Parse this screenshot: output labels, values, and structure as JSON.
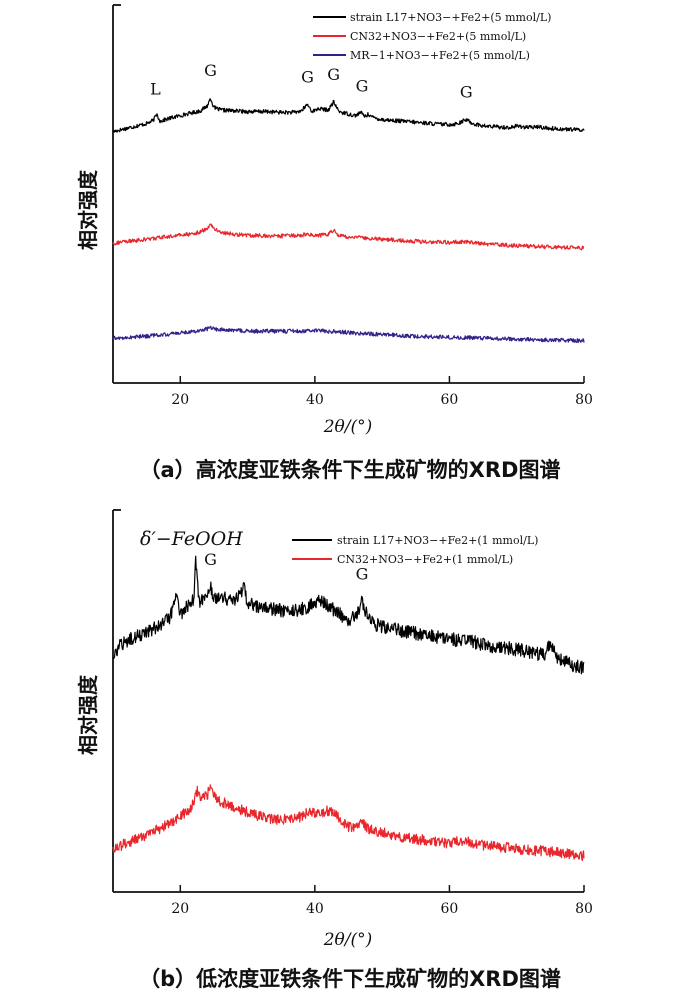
{
  "chart_data": [
    {
      "type": "line",
      "panel": "a",
      "caption": "（a）高浓度亚铁条件下生成矿物的XRD图谱",
      "title": "",
      "xlabel": "2θ/(°)",
      "ylabel": "相对强度",
      "xlim": [
        10,
        80
      ],
      "xticks": [
        20,
        40,
        60,
        80
      ],
      "yticks": [],
      "grid": false,
      "legend_position": "top-right",
      "series": [
        {
          "name": "strain L17+NO3−+Fe2+(5 mmol/L)",
          "color": "#000000",
          "x": [
            10,
            12,
            14,
            15,
            16,
            16.5,
            17,
            19,
            21,
            22,
            23,
            24,
            24.5,
            25,
            26,
            28,
            30,
            33,
            35,
            37,
            38,
            38.9,
            39.5,
            40,
            40.5,
            41,
            42,
            42.8,
            43.5,
            44,
            45,
            46,
            46.8,
            47.5,
            48,
            48.5,
            50,
            53,
            56,
            59,
            60.5,
            61.5,
            62.5,
            63.5,
            65,
            67,
            69,
            70,
            72,
            73,
            75,
            77,
            80
          ],
          "y": [
            0.58,
            0.62,
            0.66,
            0.68,
            0.72,
            0.8,
            0.71,
            0.76,
            0.8,
            0.82,
            0.84,
            0.9,
            1.0,
            0.88,
            0.85,
            0.84,
            0.83,
            0.83,
            0.82,
            0.82,
            0.84,
            0.92,
            0.84,
            0.84,
            0.87,
            0.86,
            0.85,
            0.95,
            0.84,
            0.82,
            0.8,
            0.78,
            0.82,
            0.77,
            0.8,
            0.76,
            0.73,
            0.71,
            0.69,
            0.67,
            0.67,
            0.69,
            0.73,
            0.68,
            0.65,
            0.64,
            0.63,
            0.65,
            0.63,
            0.64,
            0.62,
            0.61,
            0.6
          ]
        },
        {
          "name": "CN32+NO3−+Fe2+(5 mmol/L)",
          "color": "#e8262b",
          "x": [
            10,
            12,
            15,
            18,
            21,
            23,
            24,
            24.5,
            25,
            26,
            28,
            30,
            33,
            36,
            38,
            39,
            40,
            41,
            42,
            42.8,
            43.5,
            45,
            48,
            52,
            56,
            60,
            62,
            64,
            67,
            70,
            73,
            76,
            80
          ],
          "y": [
            0.36,
            0.38,
            0.41,
            0.44,
            0.47,
            0.5,
            0.55,
            0.6,
            0.54,
            0.5,
            0.47,
            0.46,
            0.45,
            0.45,
            0.46,
            0.48,
            0.46,
            0.46,
            0.47,
            0.52,
            0.46,
            0.44,
            0.42,
            0.4,
            0.38,
            0.37,
            0.38,
            0.36,
            0.34,
            0.33,
            0.32,
            0.31,
            0.3
          ]
        },
        {
          "name": "MR−1+NO3−+Fe2+(5 mmol/L)",
          "color": "#35208a",
          "x": [
            10,
            12,
            15,
            18,
            21,
            23,
            24,
            24.5,
            25,
            26,
            28,
            30,
            33,
            36,
            38,
            40,
            42,
            44,
            47,
            50,
            54,
            58,
            62,
            66,
            70,
            74,
            77,
            80
          ],
          "y": [
            0.12,
            0.13,
            0.15,
            0.17,
            0.2,
            0.22,
            0.24,
            0.26,
            0.24,
            0.23,
            0.22,
            0.21,
            0.21,
            0.21,
            0.21,
            0.22,
            0.21,
            0.2,
            0.18,
            0.17,
            0.15,
            0.14,
            0.13,
            0.12,
            0.11,
            0.1,
            0.1,
            0.09
          ]
        }
      ],
      "annotations": [
        {
          "text": "L",
          "x": 16.3,
          "series": 0
        },
        {
          "text": "G",
          "x": 24.5,
          "series": 0
        },
        {
          "text": "G",
          "x": 38.9,
          "series": 0
        },
        {
          "text": "G",
          "x": 42.8,
          "series": 0
        },
        {
          "text": "G",
          "x": 47.0,
          "series": 0
        },
        {
          "text": "G",
          "x": 62.5,
          "series": 0
        }
      ]
    },
    {
      "type": "line",
      "panel": "b",
      "caption": "（b）低浓度亚铁条件下生成矿物的XRD图谱",
      "title": "",
      "xlabel": "2θ/(°)",
      "ylabel": "相对强度",
      "xlim": [
        10,
        80
      ],
      "xticks": [
        20,
        40,
        60,
        80
      ],
      "yticks": [],
      "grid": false,
      "legend_position": "top-right",
      "series": [
        {
          "name": "strain L17+NO3−+Fe2+(1 mmol/L)",
          "color": "#000000",
          "x": [
            10,
            11,
            13,
            15,
            17,
            18.5,
            19.5,
            20,
            20.5,
            21,
            22,
            22.3,
            22.8,
            23.5,
            24.5,
            25,
            26,
            28,
            29.5,
            30,
            31,
            33,
            35,
            37,
            39,
            40,
            41,
            42,
            43,
            44,
            45,
            46,
            47,
            48,
            49,
            51,
            54,
            57,
            60,
            63,
            66,
            69,
            72,
            74,
            75,
            76,
            78,
            80
          ],
          "y": [
            0.45,
            0.52,
            0.57,
            0.6,
            0.64,
            0.68,
            0.82,
            0.7,
            0.72,
            0.74,
            0.78,
            1.0,
            0.76,
            0.78,
            0.85,
            0.8,
            0.79,
            0.78,
            0.84,
            0.76,
            0.75,
            0.73,
            0.72,
            0.72,
            0.74,
            0.76,
            0.78,
            0.74,
            0.72,
            0.69,
            0.67,
            0.68,
            0.77,
            0.67,
            0.64,
            0.62,
            0.6,
            0.58,
            0.56,
            0.55,
            0.52,
            0.51,
            0.49,
            0.47,
            0.53,
            0.45,
            0.42,
            0.4
          ]
        },
        {
          "name": "CN32+NO3−+Fe2+(1 mmol/L)",
          "color": "#e8262b",
          "x": [
            10,
            12,
            14,
            16,
            18,
            20,
            21,
            22,
            22.5,
            23,
            24,
            24.5,
            25,
            26,
            28,
            30,
            32,
            34,
            36,
            38,
            39,
            40,
            41,
            42,
            43,
            44,
            45,
            46,
            47,
            48,
            50,
            52,
            55,
            58,
            60,
            62,
            64,
            66,
            68,
            70,
            72,
            75,
            78,
            80
          ],
          "y": [
            0.08,
            0.12,
            0.16,
            0.2,
            0.25,
            0.31,
            0.35,
            0.4,
            0.5,
            0.43,
            0.46,
            0.54,
            0.46,
            0.42,
            0.38,
            0.34,
            0.31,
            0.29,
            0.29,
            0.31,
            0.34,
            0.33,
            0.34,
            0.35,
            0.33,
            0.28,
            0.24,
            0.24,
            0.27,
            0.22,
            0.2,
            0.17,
            0.15,
            0.13,
            0.12,
            0.14,
            0.11,
            0.1,
            0.09,
            0.08,
            0.07,
            0.06,
            0.04,
            0.03
          ]
        }
      ],
      "annotations": [
        {
          "text": "G",
          "x": 24.5,
          "series": 0
        },
        {
          "text": "G",
          "x": 47.0,
          "series": 0
        }
      ],
      "inset_label": "δ′−FeOOH"
    }
  ]
}
